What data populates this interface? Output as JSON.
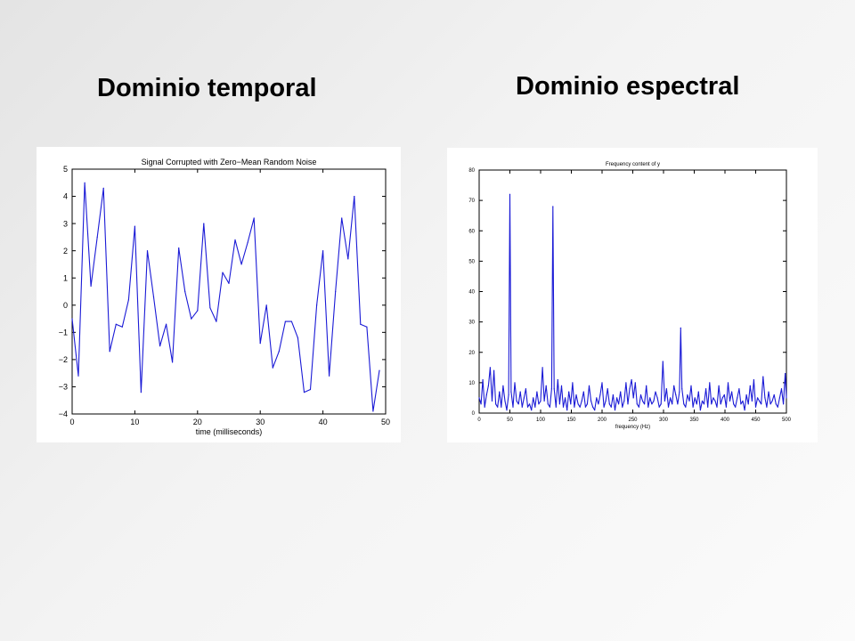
{
  "slide": {
    "left_heading": "Dominio temporal",
    "right_heading": "Dominio espectral"
  },
  "chart_data": [
    {
      "type": "line",
      "title": "Signal Corrupted with Zero−Mean Random Noise",
      "xlabel": "time (milliseconds)",
      "ylabel": "",
      "xlim": [
        0,
        50
      ],
      "ylim": [
        -4,
        5
      ],
      "xticks": [
        0,
        10,
        20,
        30,
        40,
        50
      ],
      "yticks": [
        -4,
        -3,
        -2,
        -1,
        0,
        1,
        2,
        3,
        4,
        5
      ],
      "grid": false,
      "color": "#1a1ad6",
      "series": [
        {
          "x": [
            0,
            1,
            2,
            3,
            4,
            5,
            6,
            7,
            8,
            9,
            10,
            11,
            12,
            13,
            14,
            15,
            16,
            17,
            18,
            19,
            20,
            21,
            22,
            23,
            24,
            25,
            26,
            27,
            28,
            29,
            30,
            31,
            32,
            33,
            34,
            35,
            36,
            37,
            38,
            39,
            40,
            41,
            42,
            43,
            44,
            45,
            46,
            47,
            48,
            49
          ],
          "values": [
            -0.5,
            -2.6,
            4.5,
            0.7,
            2.5,
            4.3,
            -1.7,
            -0.7,
            -0.8,
            0.2,
            2.9,
            -3.2,
            2.0,
            0.3,
            -1.5,
            -0.7,
            -2.1,
            2.1,
            0.5,
            -0.5,
            -0.2,
            3.0,
            -0.1,
            -0.6,
            1.2,
            0.8,
            2.4,
            1.5,
            2.3,
            3.2,
            -1.4,
            0.0,
            -2.3,
            -1.7,
            -0.6,
            -0.6,
            -1.2,
            -3.2,
            -3.1,
            0.0,
            2.0,
            -2.6,
            0.5,
            3.2,
            1.7,
            4.0,
            -0.7,
            -0.8,
            -3.9,
            -2.4
          ]
        }
      ]
    },
    {
      "type": "line",
      "title": "Frequency content of y",
      "xlabel": "frequency (Hz)",
      "ylabel": "",
      "xlim": [
        0,
        500
      ],
      "ylim": [
        0,
        80
      ],
      "xticks": [
        0,
        50,
        100,
        150,
        200,
        250,
        300,
        350,
        400,
        450,
        500
      ],
      "yticks": [
        0,
        10,
        20,
        30,
        40,
        50,
        60,
        70,
        80
      ],
      "grid": false,
      "color": "#1a1ad6",
      "series": [
        {
          "x": [
            0,
            3,
            6,
            9,
            12,
            15,
            18,
            21,
            24,
            27,
            30,
            33,
            36,
            39,
            42,
            45,
            48,
            50,
            52,
            55,
            58,
            61,
            64,
            67,
            70,
            73,
            76,
            79,
            82,
            85,
            88,
            91,
            94,
            97,
            100,
            103,
            106,
            109,
            112,
            115,
            118,
            120,
            122,
            125,
            128,
            131,
            134,
            137,
            140,
            143,
            146,
            149,
            152,
            155,
            158,
            161,
            164,
            167,
            170,
            173,
            176,
            179,
            182,
            185,
            188,
            191,
            194,
            197,
            200,
            203,
            206,
            209,
            212,
            215,
            218,
            221,
            224,
            227,
            230,
            233,
            236,
            239,
            242,
            245,
            248,
            251,
            254,
            257,
            260,
            263,
            266,
            269,
            272,
            275,
            278,
            281,
            284,
            287,
            290,
            293,
            296,
            299,
            302,
            305,
            308,
            311,
            314,
            317,
            320,
            323,
            326,
            328,
            330,
            333,
            336,
            339,
            342,
            345,
            348,
            351,
            354,
            357,
            360,
            363,
            366,
            369,
            372,
            375,
            378,
            381,
            384,
            387,
            390,
            393,
            396,
            399,
            402,
            405,
            408,
            411,
            414,
            417,
            420,
            423,
            426,
            429,
            432,
            435,
            438,
            441,
            444,
            447,
            450,
            453,
            456,
            459,
            462,
            465,
            468,
            471,
            474,
            477,
            480,
            483,
            486,
            489,
            492,
            495,
            498,
            500
          ],
          "values": [
            5,
            3,
            11,
            2,
            6,
            9,
            15,
            4,
            14,
            3,
            2,
            7,
            2,
            9,
            4,
            1,
            6,
            72,
            7,
            2,
            10,
            4,
            3,
            7,
            2,
            5,
            8,
            2,
            3,
            1,
            5,
            2,
            7,
            3,
            4,
            15,
            4,
            9,
            3,
            2,
            8,
            68,
            8,
            2,
            11,
            3,
            9,
            2,
            5,
            1,
            7,
            3,
            10,
            2,
            6,
            3,
            2,
            4,
            7,
            2,
            3,
            9,
            4,
            2,
            1,
            5,
            3,
            6,
            10,
            2,
            4,
            8,
            3,
            2,
            6,
            1,
            5,
            3,
            7,
            2,
            4,
            10,
            3,
            8,
            11,
            5,
            10,
            3,
            2,
            6,
            4,
            3,
            9,
            2,
            5,
            3,
            4,
            7,
            5,
            2,
            3,
            17,
            4,
            8,
            2,
            5,
            3,
            9,
            6,
            3,
            7,
            28,
            8,
            3,
            2,
            6,
            4,
            9,
            2,
            5,
            3,
            7,
            1,
            4,
            3,
            8,
            2,
            10,
            3,
            5,
            4,
            2,
            9,
            3,
            5,
            6,
            2,
            10,
            4,
            7,
            3,
            2,
            5,
            8,
            3,
            4,
            1,
            6,
            3,
            9,
            4,
            11,
            2,
            5,
            4,
            3,
            12,
            5,
            2,
            7,
            3,
            4,
            6,
            3,
            2,
            5,
            8,
            3,
            13,
            5
          ]
        }
      ]
    }
  ]
}
